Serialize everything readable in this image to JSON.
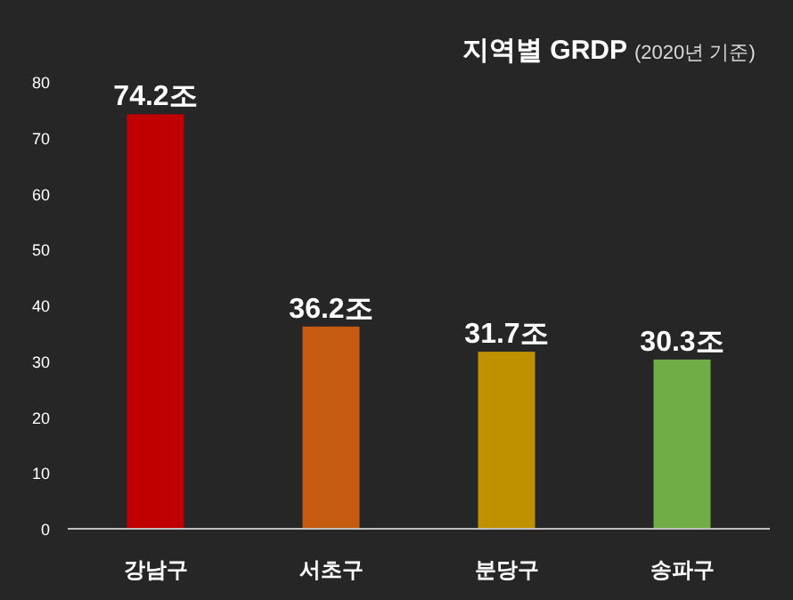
{
  "chart_data": {
    "type": "bar",
    "title": "지역별 GRDP",
    "subtitle": "(2020년 기준)",
    "categories": [
      "강남구",
      "서초구",
      "분당구",
      "송파구"
    ],
    "values": [
      74.2,
      36.2,
      31.7,
      30.3
    ],
    "colors": [
      "#c00000",
      "#c55a11",
      "#bf9000",
      "#70ad47"
    ],
    "value_labels": [
      "74.2조",
      "36.2조",
      "31.7조",
      "30.3조"
    ],
    "ylim": [
      0,
      80
    ],
    "yticks": [
      0,
      10,
      20,
      30,
      40,
      50,
      60,
      70,
      80
    ],
    "grid": false
  }
}
